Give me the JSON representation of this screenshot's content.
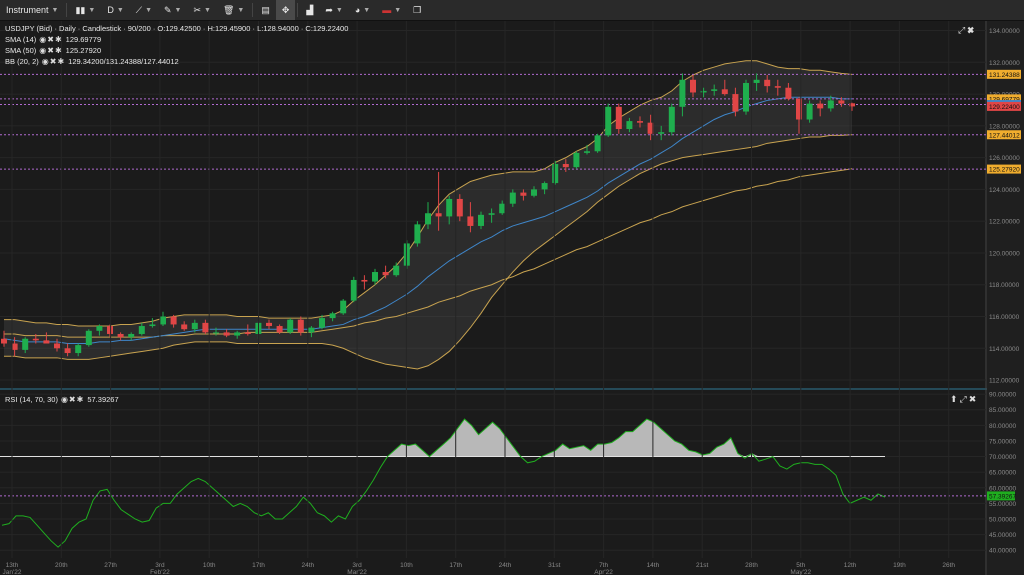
{
  "toolbar": {
    "instrument": "Instrument",
    "timeframe": "D"
  },
  "legends": {
    "main": "USDJPY (Bid) · Daily · Candlestick · 90/200 · O:129.42500 · H:129.45900 · L:128.94000 · C:129.22400",
    "sma14_name": "SMA (14)",
    "sma14_val": "129.69779",
    "sma50_name": "SMA (50)",
    "sma50_val": "125.27920",
    "bb_name": "BB (20, 2)",
    "bb_val": "129.34200/131.24388/127.44012",
    "rsi_name": "RSI (14, 70, 30)",
    "rsi_val": "57.39267"
  },
  "colors": {
    "bull": "#1fae4e",
    "bear": "#e04646",
    "sma14": "#3f86c9",
    "sma50": "#c8a350",
    "bb": "#c8a350",
    "rsi": "#1fae1f",
    "hline": "#b06ad0",
    "price_label": "#f0ad2e"
  },
  "chart_data": [
    {
      "type": "candlestick",
      "title": "USDJPY (Bid) - Daily - Candlestick",
      "ylim": [
        111.5,
        134.6
      ],
      "y_ticks": [
        "134.00000",
        "132.00000",
        "130.00000",
        "128.00000",
        "126.00000",
        "124.00000",
        "122.00000",
        "120.00000",
        "118.00000",
        "116.00000",
        "114.00000",
        "112.00000"
      ],
      "x_ticks": [
        "13th Jan'22",
        "20th",
        "27th",
        "3rd Feb'22",
        "10th",
        "17th",
        "24th",
        "3rd Mar'22",
        "10th",
        "17th",
        "24th",
        "31st",
        "7th Apr'22",
        "14th",
        "21st",
        "28th",
        "5th May'22",
        "12th",
        "19th",
        "26th"
      ],
      "candles": [
        [
          114.6,
          115.1,
          114.1,
          114.3
        ],
        [
          114.3,
          114.7,
          113.5,
          113.9
        ],
        [
          113.9,
          114.7,
          113.7,
          114.6
        ],
        [
          114.6,
          114.9,
          114.3,
          114.5
        ],
        [
          114.5,
          115.0,
          114.3,
          114.3
        ],
        [
          114.3,
          114.6,
          113.8,
          114.0
        ],
        [
          114.0,
          114.3,
          113.5,
          113.7
        ],
        [
          113.7,
          114.3,
          113.5,
          114.2
        ],
        [
          114.2,
          115.2,
          114.1,
          115.1
        ],
        [
          115.1,
          115.5,
          114.8,
          115.4
        ],
        [
          115.4,
          115.5,
          114.7,
          114.9
        ],
        [
          114.9,
          115.0,
          114.5,
          114.7
        ],
        [
          114.7,
          115.0,
          114.5,
          114.9
        ],
        [
          114.9,
          115.6,
          114.8,
          115.4
        ],
        [
          115.4,
          115.9,
          115.3,
          115.5
        ],
        [
          115.5,
          116.3,
          115.4,
          116.0
        ],
        [
          116.0,
          116.1,
          115.3,
          115.5
        ],
        [
          115.5,
          115.7,
          115.1,
          115.2
        ],
        [
          115.2,
          115.8,
          115.0,
          115.6
        ],
        [
          115.6,
          115.8,
          114.9,
          115.0
        ],
        [
          115.0,
          115.3,
          114.8,
          115.0
        ],
        [
          115.0,
          115.2,
          114.7,
          114.8
        ],
        [
          114.8,
          115.1,
          114.6,
          115.0
        ],
        [
          115.0,
          115.5,
          114.8,
          114.9
        ],
        [
          114.9,
          115.7,
          114.6,
          115.6
        ],
        [
          115.6,
          115.8,
          115.2,
          115.4
        ],
        [
          115.4,
          115.5,
          114.9,
          115.0
        ],
        [
          115.0,
          115.9,
          114.9,
          115.8
        ],
        [
          115.8,
          116.0,
          114.8,
          115.0
        ],
        [
          115.0,
          115.4,
          114.7,
          115.3
        ],
        [
          115.3,
          116.1,
          115.2,
          115.9
        ],
        [
          115.9,
          116.3,
          115.7,
          116.2
        ],
        [
          116.2,
          117.1,
          116.1,
          117.0
        ],
        [
          117.0,
          118.5,
          116.9,
          118.3
        ],
        [
          118.3,
          118.6,
          117.7,
          118.2
        ],
        [
          118.2,
          119.0,
          118.0,
          118.8
        ],
        [
          118.8,
          119.2,
          118.4,
          118.6
        ],
        [
          118.6,
          119.4,
          118.5,
          119.2
        ],
        [
          119.2,
          120.8,
          119.0,
          120.6
        ],
        [
          120.6,
          122.0,
          120.4,
          121.8
        ],
        [
          121.8,
          123.2,
          121.5,
          122.5
        ],
        [
          122.5,
          125.1,
          121.4,
          122.3
        ],
        [
          122.3,
          123.6,
          121.8,
          123.4
        ],
        [
          123.4,
          123.7,
          122.0,
          122.3
        ],
        [
          122.3,
          123.2,
          121.3,
          121.7
        ],
        [
          121.7,
          122.6,
          121.5,
          122.4
        ],
        [
          122.4,
          122.8,
          121.9,
          122.5
        ],
        [
          122.5,
          123.3,
          122.4,
          123.1
        ],
        [
          123.1,
          124.0,
          122.9,
          123.8
        ],
        [
          123.8,
          124.0,
          123.3,
          123.6
        ],
        [
          123.6,
          124.2,
          123.5,
          124.0
        ],
        [
          124.0,
          124.5,
          123.7,
          124.4
        ],
        [
          124.4,
          125.8,
          124.3,
          125.6
        ],
        [
          125.6,
          125.9,
          125.1,
          125.4
        ],
        [
          125.4,
          126.4,
          125.3,
          126.3
        ],
        [
          126.3,
          126.8,
          126.2,
          126.4
        ],
        [
          126.4,
          127.5,
          126.3,
          127.4
        ],
        [
          127.4,
          129.4,
          127.3,
          129.2
        ],
        [
          129.2,
          129.4,
          127.5,
          127.8
        ],
        [
          127.8,
          128.5,
          127.6,
          128.3
        ],
        [
          128.3,
          128.6,
          127.9,
          128.2
        ],
        [
          128.2,
          128.7,
          127.1,
          127.5
        ],
        [
          127.5,
          128.0,
          127.1,
          127.6
        ],
        [
          127.6,
          129.4,
          127.4,
          129.2
        ],
        [
          129.2,
          131.3,
          128.6,
          130.9
        ],
        [
          130.9,
          131.2,
          129.8,
          130.1
        ],
        [
          130.1,
          130.4,
          129.8,
          130.2
        ],
        [
          130.2,
          130.6,
          129.9,
          130.3
        ],
        [
          130.3,
          130.9,
          129.9,
          130.0
        ],
        [
          130.0,
          130.4,
          128.6,
          128.9
        ],
        [
          128.9,
          130.9,
          128.7,
          130.7
        ],
        [
          130.7,
          131.3,
          130.2,
          130.9
        ],
        [
          130.9,
          131.2,
          130.1,
          130.5
        ],
        [
          130.5,
          130.9,
          129.9,
          130.4
        ],
        [
          130.4,
          130.7,
          129.6,
          129.7
        ],
        [
          129.7,
          129.8,
          127.5,
          128.4
        ],
        [
          128.4,
          129.6,
          128.2,
          129.4
        ],
        [
          129.4,
          129.6,
          128.6,
          129.1
        ],
        [
          129.1,
          129.9,
          128.9,
          129.6
        ],
        [
          129.6,
          129.8,
          129.2,
          129.4
        ],
        [
          129.42,
          129.459,
          128.94,
          129.224
        ]
      ],
      "sma14": [
        114.6,
        114.5,
        114.4,
        114.4,
        114.4,
        114.4,
        114.3,
        114.3,
        114.3,
        114.4,
        114.4,
        114.5,
        114.5,
        114.6,
        114.7,
        114.8,
        114.9,
        115.0,
        115.1,
        115.2,
        115.2,
        115.2,
        115.2,
        115.2,
        115.2,
        115.2,
        115.2,
        115.2,
        115.2,
        115.2,
        115.3,
        115.4,
        115.5,
        115.8,
        116.0,
        116.3,
        116.6,
        117.0,
        117.4,
        117.9,
        118.5,
        119.0,
        119.5,
        119.9,
        120.3,
        120.7,
        121.0,
        121.4,
        121.7,
        121.9,
        122.1,
        122.3,
        122.6,
        122.9,
        123.2,
        123.5,
        123.9,
        124.4,
        124.8,
        125.2,
        125.6,
        125.9,
        126.3,
        126.7,
        127.2,
        127.6,
        128.0,
        128.4,
        128.7,
        128.9,
        129.2,
        129.4,
        129.6,
        129.7,
        129.8,
        129.8,
        129.8,
        129.8,
        129.8,
        129.7,
        129.7
      ],
      "sma50": [
        114.9,
        114.9,
        114.8,
        114.8,
        114.8,
        114.8,
        114.7,
        114.7,
        114.7,
        114.7,
        114.7,
        114.7,
        114.7,
        114.7,
        114.7,
        114.8,
        114.8,
        114.8,
        114.9,
        114.9,
        114.9,
        114.9,
        114.9,
        115.0,
        115.0,
        115.0,
        115.0,
        115.0,
        115.0,
        115.0,
        115.1,
        115.2,
        115.3,
        115.4,
        115.6,
        115.7,
        115.9,
        116.0,
        116.2,
        116.4,
        116.6,
        116.9,
        117.1,
        117.3,
        117.6,
        117.8,
        118.0,
        118.3,
        118.5,
        118.8,
        119.0,
        119.3,
        119.6,
        119.9,
        120.2,
        120.4,
        120.7,
        121.0,
        121.3,
        121.6,
        121.9,
        122.1,
        122.4,
        122.6,
        122.9,
        123.1,
        123.3,
        123.5,
        123.7,
        123.9,
        124.0,
        124.2,
        124.3,
        124.5,
        124.6,
        124.8,
        124.9,
        125.0,
        125.1,
        125.2,
        125.3
      ],
      "bb_upper": [
        115.8,
        115.8,
        115.7,
        115.6,
        115.6,
        115.5,
        115.5,
        115.4,
        115.4,
        115.4,
        115.4,
        115.5,
        115.5,
        115.6,
        115.7,
        115.9,
        116.0,
        116.1,
        116.1,
        116.1,
        116.1,
        116.1,
        116.0,
        116.0,
        116.0,
        115.9,
        115.9,
        115.9,
        115.9,
        115.9,
        116.0,
        116.1,
        116.4,
        117.0,
        117.5,
        118.0,
        118.6,
        119.2,
        120.0,
        121.0,
        122.1,
        123.0,
        123.7,
        124.1,
        124.5,
        124.7,
        124.9,
        125.0,
        125.1,
        125.1,
        125.1,
        125.3,
        125.7,
        126.0,
        126.4,
        126.7,
        127.2,
        128.0,
        128.5,
        128.9,
        129.3,
        129.6,
        129.8,
        130.2,
        130.8,
        131.2,
        131.5,
        131.7,
        131.9,
        132.0,
        132.1,
        132.1,
        131.9,
        131.7,
        131.6,
        131.6,
        131.5,
        131.5,
        131.4,
        131.3,
        131.24
      ],
      "bb_lower": [
        113.5,
        113.5,
        113.4,
        113.4,
        113.4,
        113.4,
        113.3,
        113.3,
        113.3,
        113.4,
        113.5,
        113.6,
        113.7,
        113.8,
        113.9,
        114.0,
        114.2,
        114.3,
        114.4,
        114.4,
        114.4,
        114.4,
        114.3,
        114.3,
        114.3,
        114.3,
        114.3,
        114.3,
        114.3,
        114.3,
        114.3,
        114.2,
        114.0,
        113.7,
        113.4,
        113.2,
        113.0,
        112.9,
        112.8,
        112.7,
        112.9,
        113.3,
        113.8,
        114.5,
        115.3,
        116.2,
        117.2,
        118.0,
        118.8,
        119.5,
        120.1,
        120.6,
        121.1,
        121.6,
        122.1,
        122.6,
        123.2,
        123.7,
        124.2,
        124.6,
        125.0,
        125.3,
        125.6,
        125.8,
        126.0,
        126.1,
        126.2,
        126.3,
        126.4,
        126.5,
        126.6,
        126.7,
        126.9,
        127.0,
        127.1,
        127.2,
        127.3,
        127.3,
        127.4,
        127.4,
        127.44
      ],
      "hlines": [
        131.24388,
        129.69779,
        129.342,
        127.44012,
        125.2792
      ],
      "price_labels": [
        "131.24388",
        "129.69779",
        "129.34200",
        "129.22400",
        "127.44012",
        "125.27920"
      ]
    },
    {
      "type": "line",
      "title": "RSI (14, 70, 30)",
      "ylim": [
        37.5,
        91
      ],
      "y_ticks": [
        "90.00000",
        "85.00000",
        "80.00000",
        "75.00000",
        "70.00000",
        "65.00000",
        "60.00000",
        "55.00000",
        "50.00000",
        "45.00000",
        "40.00000"
      ],
      "overbought": 70,
      "last_label": "57.39267",
      "values": [
        48,
        48.5,
        51,
        51,
        50.5,
        48,
        45.5,
        43,
        41,
        43,
        47,
        49,
        50,
        56,
        59,
        59.5,
        56,
        53,
        51.5,
        50,
        49,
        49.5,
        53.5,
        55,
        55,
        58,
        60,
        62,
        63,
        62,
        60,
        58,
        56,
        54,
        55,
        54,
        52,
        51,
        52,
        50,
        50,
        52,
        54,
        57,
        55,
        52,
        51,
        49,
        51,
        50,
        54,
        56,
        59,
        62.5,
        66.5,
        70,
        72,
        74,
        73.5,
        74,
        72,
        70,
        72,
        74,
        76,
        79,
        82,
        80,
        77,
        79,
        81,
        79,
        76,
        73,
        70,
        68,
        68.5,
        70,
        71,
        72,
        74,
        72.5,
        73,
        73.5,
        72,
        74,
        74,
        74.5,
        76,
        78,
        78,
        80,
        82,
        81,
        79,
        77,
        75,
        74,
        72,
        71.5,
        70.5,
        71,
        73,
        74,
        76,
        71,
        69.5,
        71,
        68.5,
        69.2,
        70,
        67,
        66,
        67.5,
        68,
        68,
        67.5,
        67.5,
        66,
        64,
        58,
        55,
        56,
        57,
        56,
        58,
        57
      ]
    }
  ]
}
